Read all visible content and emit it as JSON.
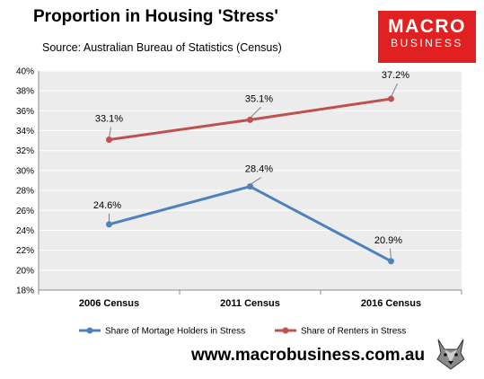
{
  "header": {
    "title": "Proportion in Housing 'Stress'",
    "source": "Source: Australian Bureau of Statistics (Census)"
  },
  "logo": {
    "line1": "MACRO",
    "line2": "BUSINESS"
  },
  "footer": {
    "website": "www.macrobusiness.com.au"
  },
  "colors": {
    "mortgage": "#4f81bd",
    "renters": "#c0504d",
    "brand": "#e02021"
  },
  "chart_data": {
    "type": "line",
    "title": "Proportion in Housing 'Stress'",
    "subtitle": "Source: Australian Bureau of Statistics (Census)",
    "categories": [
      "2006 Census",
      "2011 Census",
      "2016 Census"
    ],
    "series": [
      {
        "name": "Share of Mortage Holders in Stress",
        "values": [
          24.6,
          28.4,
          20.9
        ],
        "labels": [
          "24.6%",
          "28.4%",
          "20.9%"
        ],
        "color": "#4f81bd"
      },
      {
        "name": "Share of Renters in Stress",
        "values": [
          33.1,
          35.1,
          37.2
        ],
        "labels": [
          "33.1%",
          "35.1%",
          "37.2%"
        ],
        "color": "#c0504d"
      }
    ],
    "ylim": [
      18,
      40
    ],
    "yticks": [
      "18%",
      "20%",
      "22%",
      "24%",
      "26%",
      "28%",
      "30%",
      "32%",
      "34%",
      "36%",
      "38%",
      "40%"
    ],
    "xlabel": "",
    "ylabel": "",
    "grid": true,
    "legend": "bottom"
  }
}
